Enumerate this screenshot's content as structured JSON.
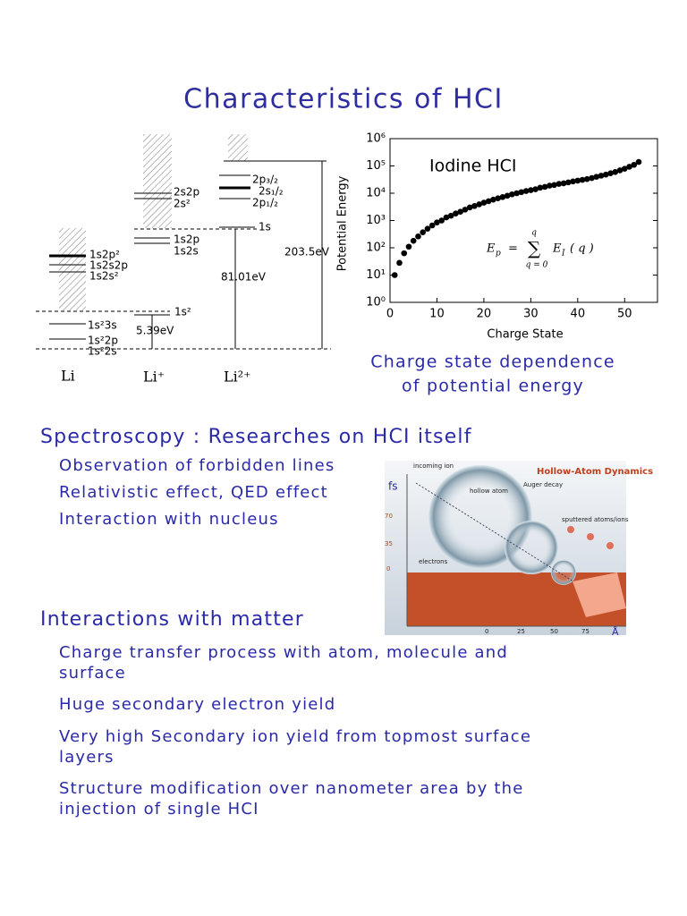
{
  "title": "Characteristics of HCI",
  "energy_diagram": {
    "labels": [
      "2p₃/₂",
      "2s₁/₂",
      "2p₁/₂",
      "2s2p",
      "2s²",
      "1s",
      "1s2p",
      "1s2s",
      "203.5eV",
      "1s2p²",
      "1s2s2p",
      "1s2s²",
      "81.01eV",
      "1s²",
      "1s²3s",
      "5.39eV",
      "1s²2p",
      "1s²2s"
    ],
    "ions": [
      "Li",
      "Li⁺",
      "Li²⁺"
    ]
  },
  "chart_data": {
    "type": "scatter",
    "annotation": "Iodine HCI",
    "xlabel": "Charge State",
    "ylabel": "Potential Energy",
    "formula": {
      "lhs": "E",
      "lhs_sub": "p",
      "equals": "=",
      "sum": "∑",
      "upper": "q",
      "lower": "q = 0",
      "term": "E",
      "term_sub": "I",
      "argument": "( q )"
    },
    "color": "#000000",
    "log_y": true,
    "x": [
      1,
      2,
      3,
      4,
      5,
      6,
      7,
      8,
      9,
      10,
      11,
      12,
      13,
      14,
      15,
      16,
      17,
      18,
      19,
      20,
      21,
      22,
      23,
      24,
      25,
      26,
      27,
      28,
      29,
      30,
      31,
      32,
      33,
      34,
      35,
      36,
      37,
      38,
      39,
      40,
      41,
      42,
      43,
      44,
      45,
      46,
      47,
      48,
      49,
      50,
      51,
      52,
      53
    ],
    "values": [
      10,
      28,
      63,
      110,
      180,
      260,
      370,
      500,
      660,
      850,
      1000,
      1300,
      1500,
      1800,
      2100,
      2500,
      3000,
      3400,
      3900,
      4500,
      5100,
      5800,
      6500,
      7200,
      8100,
      9100,
      10000,
      11000,
      12000,
      13000,
      14000,
      16000,
      17000,
      19000,
      20000,
      22000,
      23000,
      25000,
      27000,
      29000,
      31000,
      33000,
      36000,
      40000,
      44000,
      48000,
      54000,
      60000,
      69000,
      79000,
      93000,
      110000,
      140000
    ],
    "xlim": [
      0,
      57
    ],
    "xticks": [
      0,
      10,
      20,
      30,
      40,
      50
    ],
    "ylim": [
      1,
      1000000
    ],
    "yticks": [
      {
        "value": 1,
        "label": "10⁰"
      },
      {
        "value": 10,
        "label": "10¹"
      },
      {
        "value": 100,
        "label": "10²"
      },
      {
        "value": 1000,
        "label": "10³"
      },
      {
        "value": 10000,
        "label": "10⁴"
      },
      {
        "value": 100000,
        "label": "10⁵"
      },
      {
        "value": 1000000,
        "label": "10⁶"
      }
    ]
  },
  "caption": [
    "Charge state dependence",
    "of potential energy"
  ],
  "hollow_atom": {
    "title": "Hollow-Atom Dynamics",
    "labels": [
      "incoming ion",
      "hollow atom",
      "Auger decay",
      "sputtered atoms/ions",
      "electrons"
    ],
    "y_unit": "fs",
    "y_ticks": [
      "70",
      "35",
      "0"
    ],
    "x_ticks": [
      "0",
      "25",
      "50",
      "75"
    ],
    "x_unit": "Å"
  },
  "sections": [
    {
      "heading": "Spectroscopy : Researches on HCI itself",
      "items": [
        [
          "Observation of forbidden lines"
        ],
        [
          "Relativistic effect, QED effect"
        ],
        [
          "Interaction with nucleus"
        ]
      ]
    },
    {
      "heading": "Interactions with matter",
      "items": [
        [
          "Charge transfer process with atom, molecule and",
          "surface"
        ],
        [
          "Huge secondary electron yield"
        ],
        [
          "Very high Secondary ion yield from topmost surface",
          "layers"
        ],
        [
          "Structure modification over nanometer area by the",
          "injection of single HCI"
        ]
      ]
    }
  ]
}
